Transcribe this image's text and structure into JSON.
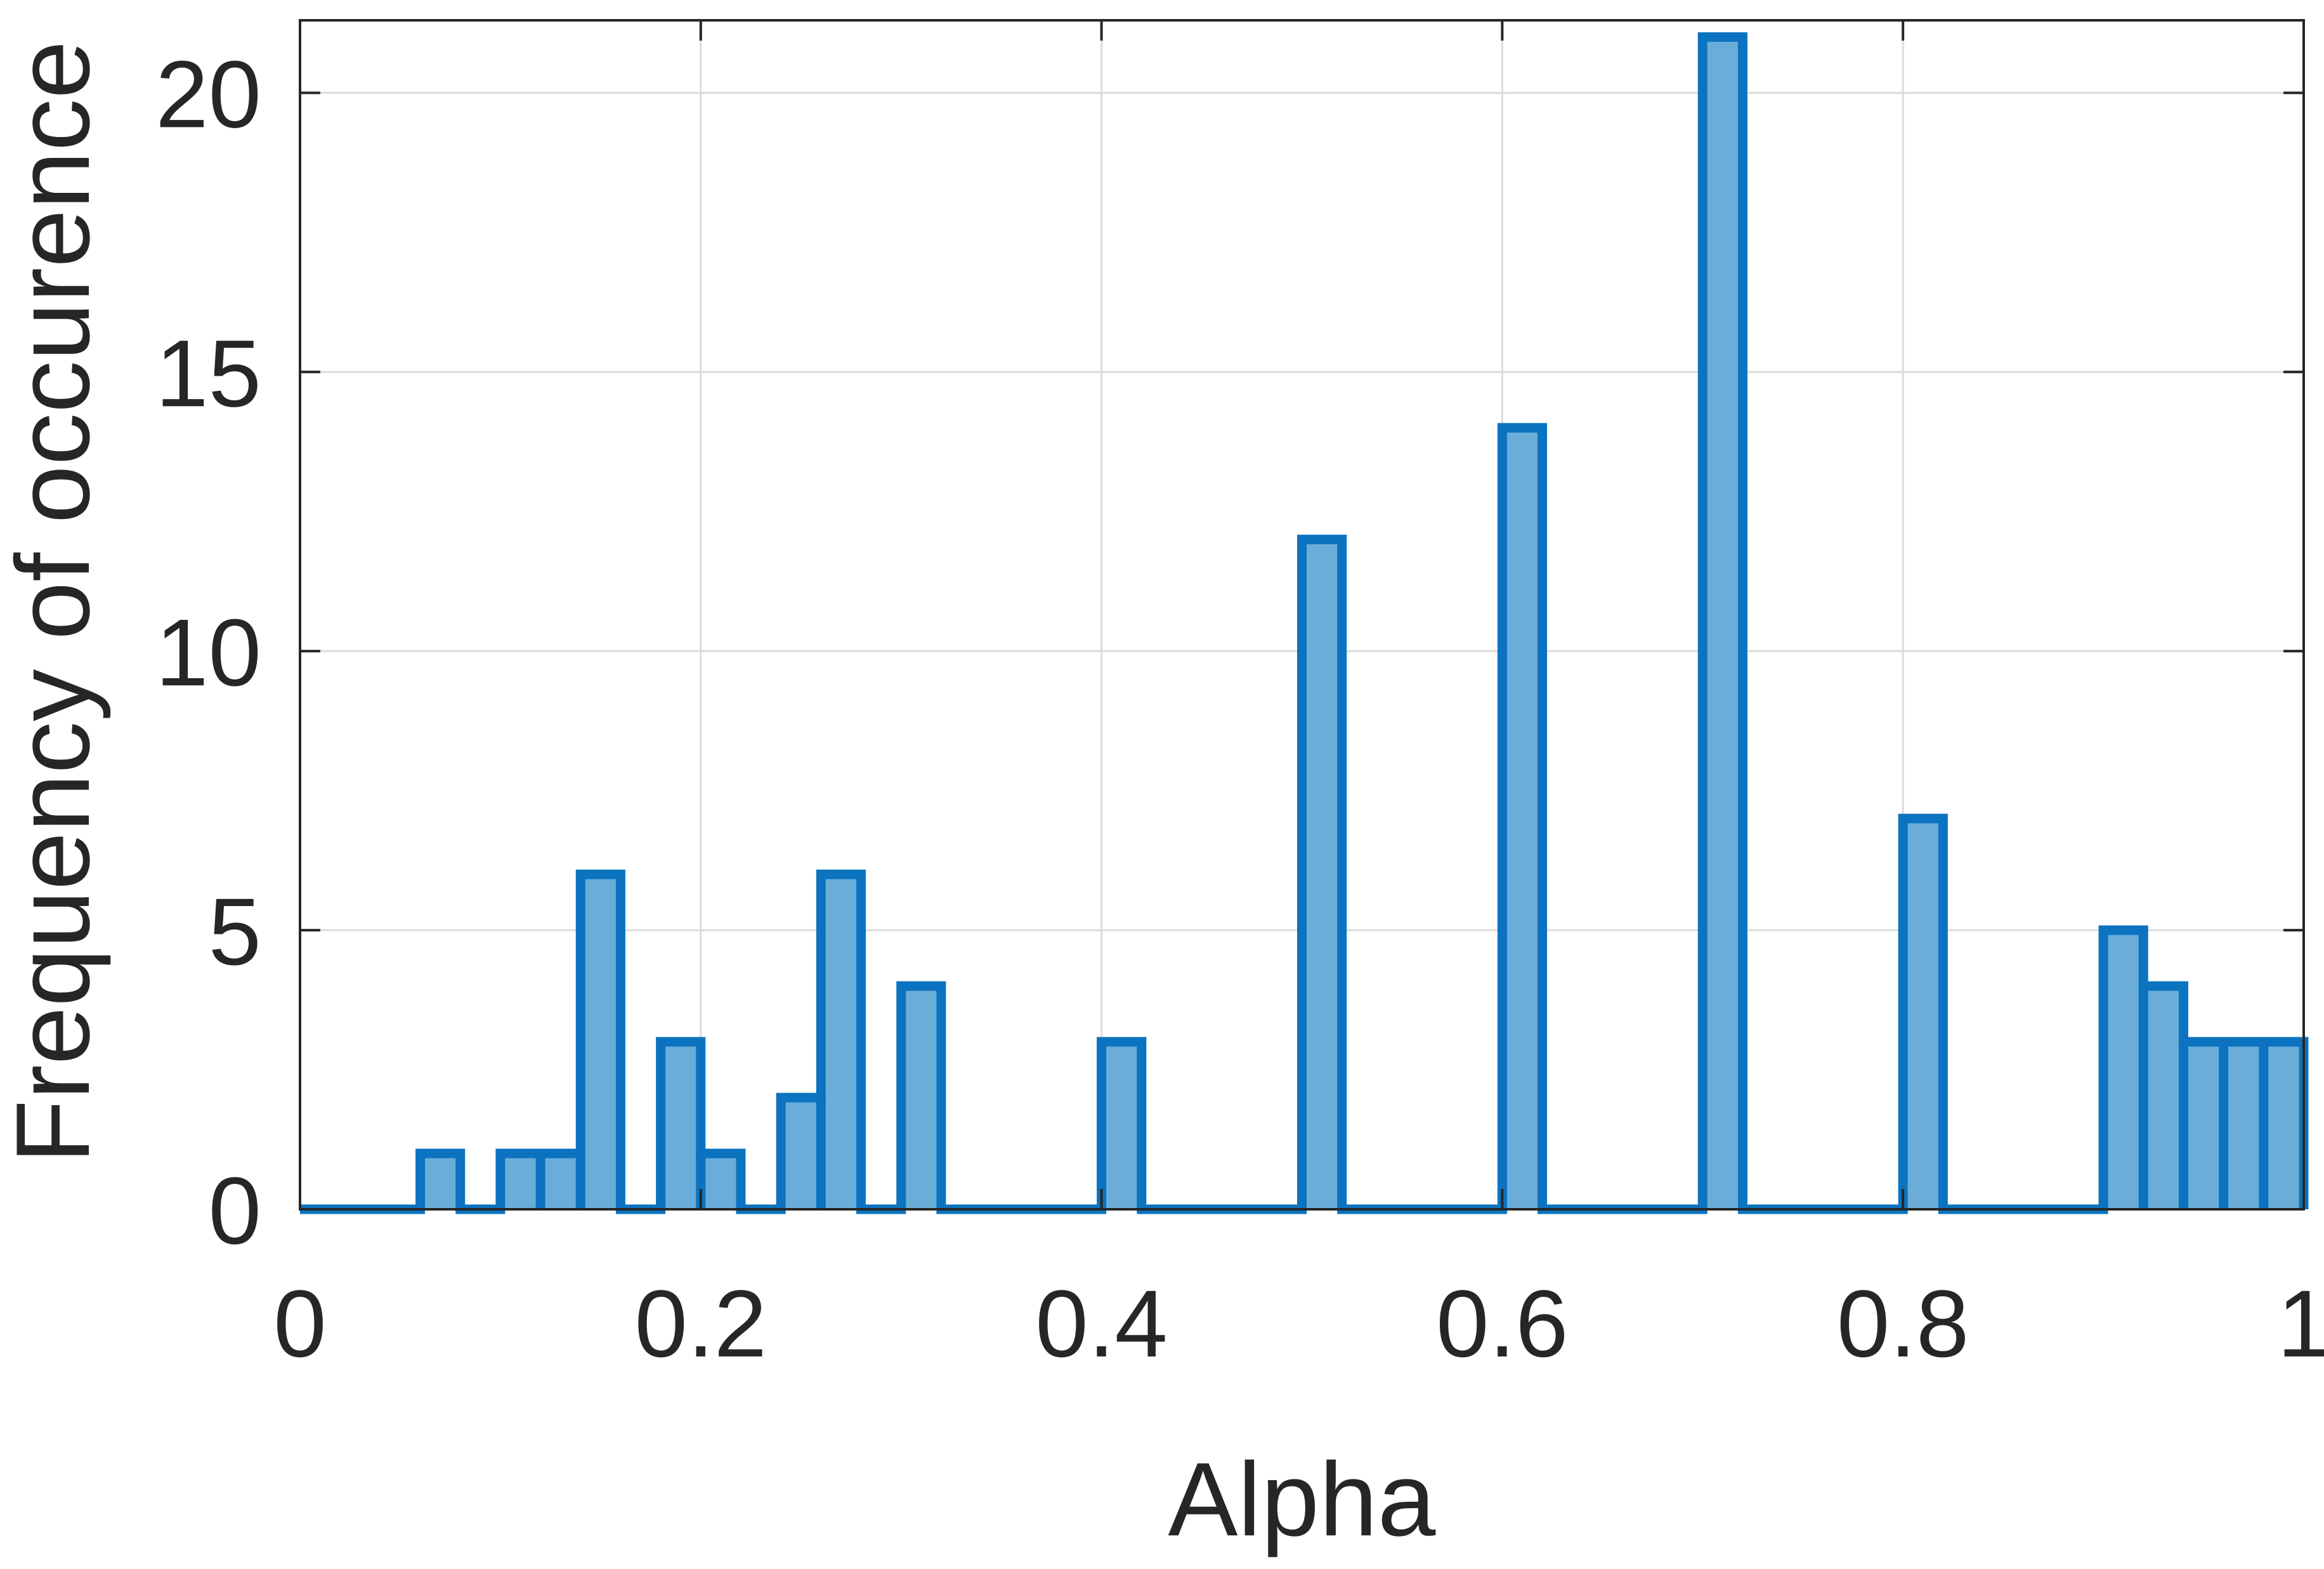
{
  "chart_data": {
    "type": "bar",
    "subtype": "histogram",
    "title": "",
    "xlabel": "Alpha",
    "ylabel": "Frequency of occurence",
    "xlim": [
      0,
      1
    ],
    "ylim": [
      0,
      21.3
    ],
    "xticks": [
      0,
      0.2,
      0.4,
      0.6,
      0.8,
      1
    ],
    "xtick_labels": [
      "0",
      "0.2",
      "0.4",
      "0.6",
      "0.8",
      "1"
    ],
    "yticks": [
      0,
      5,
      10,
      15,
      20
    ],
    "ytick_labels": [
      "0",
      "5",
      "10",
      "15",
      "20"
    ],
    "grid": true,
    "box": true,
    "legend": "none",
    "bin_width": 0.02,
    "bin_edges_start": 0,
    "counts": [
      0,
      0,
      0,
      1,
      0,
      1,
      1,
      6,
      0,
      3,
      1,
      0,
      2,
      6,
      0,
      4,
      0,
      0,
      0,
      0,
      3,
      0,
      0,
      0,
      0,
      12,
      0,
      0,
      0,
      0,
      14,
      0,
      0,
      0,
      0,
      21,
      0,
      0,
      0,
      0,
      7,
      0,
      0,
      0,
      0,
      5,
      4,
      3,
      3,
      3
    ],
    "colors": {
      "face": "#6aadd9",
      "edge": "#0b73bf",
      "grid": "#dcdcdc",
      "axis": "#262626"
    }
  }
}
